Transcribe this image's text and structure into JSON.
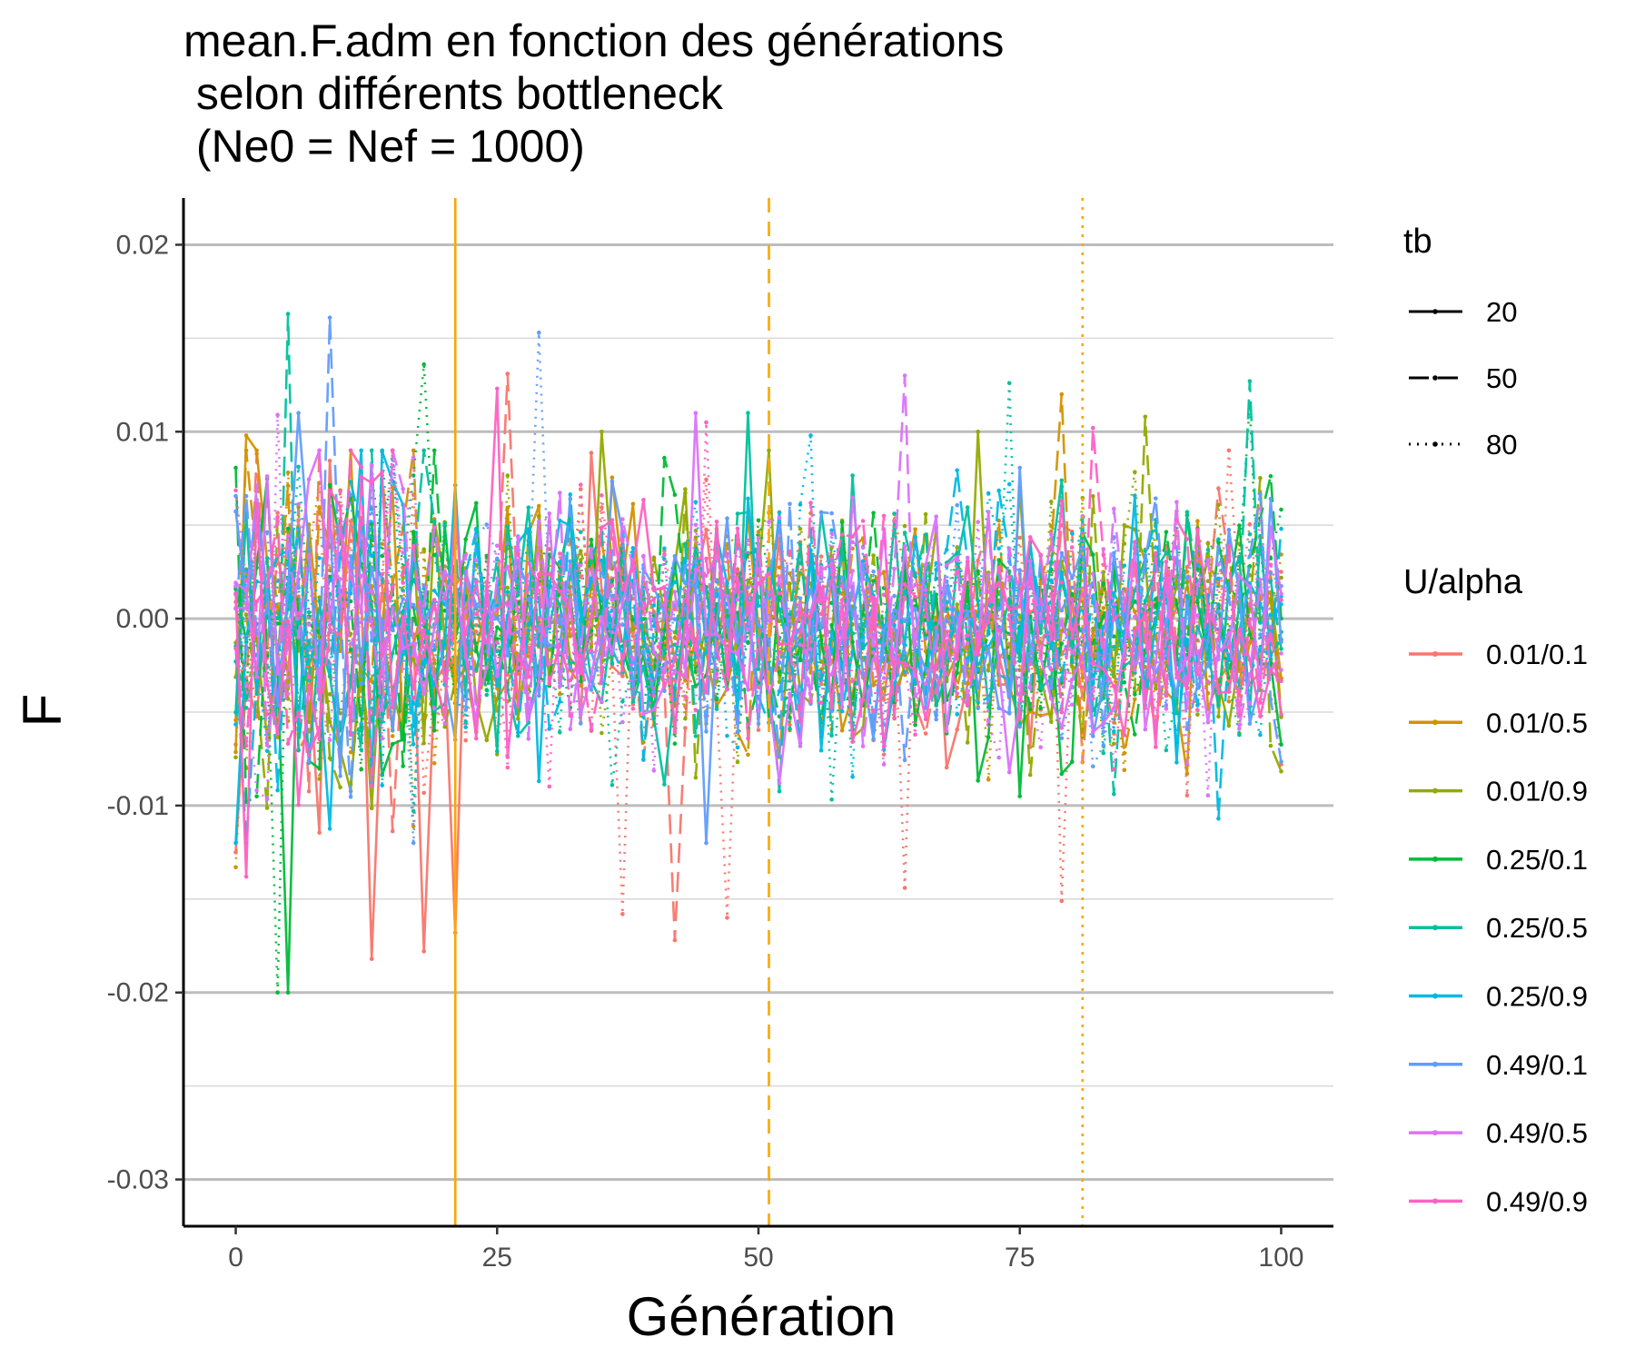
{
  "chart_data": {
    "type": "line",
    "title_lines": [
      "mean.F.adm en fonction des générations",
      " selon différents bottleneck",
      " (Ne0 = Nef = 1000)"
    ],
    "xlabel": "Génération",
    "ylabel": "F",
    "xlim": [
      -5,
      105
    ],
    "ylim": [
      -0.0325,
      0.0225
    ],
    "x_ticks": [
      0,
      25,
      50,
      75,
      100
    ],
    "x_tick_labels": [
      "0",
      "25",
      "50",
      "75",
      "100"
    ],
    "y_ticks": [
      -0.03,
      -0.02,
      -0.01,
      0.0,
      0.01,
      0.02
    ],
    "y_tick_labels": [
      "-0.03",
      "-0.02",
      "-0.01",
      "0.00",
      "0.01",
      "0.02"
    ],
    "y_minor_ticks": [
      -0.025,
      -0.015,
      -0.005,
      0.005,
      0.015
    ],
    "grid": true,
    "legend_position": "right",
    "vertical_lines": [
      {
        "x": 21,
        "linetype": "solid",
        "color": "#FFA500"
      },
      {
        "x": 51,
        "linetype": "dashed",
        "color": "#FFA500"
      },
      {
        "x": 81,
        "linetype": "dotted",
        "color": "#FFA500"
      }
    ],
    "legend_linetype": {
      "title": "tb",
      "items": [
        {
          "label": "20",
          "linetype": "solid"
        },
        {
          "label": "50",
          "linetype": "dashed"
        },
        {
          "label": "80",
          "linetype": "dotted"
        }
      ]
    },
    "legend_color": {
      "title": "U/alpha",
      "items": [
        {
          "label": "0.01/0.1",
          "color": "#F8766D"
        },
        {
          "label": "0.01/0.5",
          "color": "#D39200"
        },
        {
          "label": "0.01/0.9",
          "color": "#93AA00"
        },
        {
          "label": "0.25/0.1",
          "color": "#00BA38"
        },
        {
          "label": "0.25/0.5",
          "color": "#00C19F"
        },
        {
          "label": "0.25/0.9",
          "color": "#00B9E3"
        },
        {
          "label": "0.49/0.1",
          "color": "#619CFF"
        },
        {
          "label": "0.49/0.5",
          "color": "#DB72FB"
        },
        {
          "label": "0.49/0.9",
          "color": "#FF61C3"
        }
      ]
    },
    "series_x_range": [
      0,
      100
    ],
    "series": [
      {
        "group": "0.01/0.1",
        "tb": "20",
        "color": "#F8766D",
        "linetype": "solid",
        "peaks": [
          {
            "x": 21,
            "y": -0.0168
          },
          {
            "x": 13,
            "y": -0.0182
          },
          {
            "x": 18,
            "y": -0.0178
          },
          {
            "x": 0,
            "y": -0.0125
          }
        ]
      },
      {
        "group": "0.01/0.1",
        "tb": "50",
        "color": "#F8766D",
        "linetype": "dashed",
        "peaks": [
          {
            "x": 42,
            "y": -0.0172
          },
          {
            "x": 26,
            "y": 0.0131
          }
        ]
      },
      {
        "group": "0.01/0.1",
        "tb": "80",
        "color": "#F8766D",
        "linetype": "dotted",
        "peaks": [
          {
            "x": 37,
            "y": -0.0158
          },
          {
            "x": 47,
            "y": -0.016
          },
          {
            "x": 64,
            "y": -0.0144
          },
          {
            "x": 79,
            "y": -0.0151
          },
          {
            "x": 100,
            "y": -0.0078
          }
        ]
      },
      {
        "group": "0.01/0.5",
        "tb": "20",
        "color": "#D39200",
        "linetype": "solid",
        "peaks": [
          {
            "x": 1,
            "y": 0.0098
          },
          {
            "x": 91,
            "y": -0.0083
          }
        ]
      },
      {
        "group": "0.01/0.5",
        "tb": "50",
        "color": "#D39200",
        "linetype": "dashed",
        "peaks": [
          {
            "x": 79,
            "y": 0.012
          }
        ]
      },
      {
        "group": "0.01/0.5",
        "tb": "80",
        "color": "#D39200",
        "linetype": "dotted",
        "peaks": [
          {
            "x": 0,
            "y": -0.0133
          }
        ]
      },
      {
        "group": "0.01/0.9",
        "tb": "20",
        "color": "#93AA00",
        "linetype": "solid",
        "peaks": [
          {
            "x": 35,
            "y": 0.01
          },
          {
            "x": 71,
            "y": 0.01
          }
        ]
      },
      {
        "group": "0.01/0.9",
        "tb": "50",
        "color": "#93AA00",
        "linetype": "dashed",
        "peaks": [
          {
            "x": 87,
            "y": 0.0108
          }
        ]
      },
      {
        "group": "0.01/0.9",
        "tb": "80",
        "color": "#93AA00",
        "linetype": "dotted",
        "peaks": [
          {
            "x": 2,
            "y": 0.0071
          }
        ]
      },
      {
        "group": "0.25/0.1",
        "tb": "20",
        "color": "#00BA38",
        "linetype": "solid",
        "peaks": [
          {
            "x": 5,
            "y": -0.02
          },
          {
            "x": 75,
            "y": -0.0095
          }
        ]
      },
      {
        "group": "0.25/0.1",
        "tb": "50",
        "color": "#00BA38",
        "linetype": "dashed",
        "peaks": [
          {
            "x": 41,
            "y": 0.0086
          }
        ]
      },
      {
        "group": "0.25/0.1",
        "tb": "80",
        "color": "#00BA38",
        "linetype": "dotted",
        "peaks": [
          {
            "x": 18,
            "y": 0.0136
          },
          {
            "x": 4,
            "y": -0.02
          },
          {
            "x": 97,
            "y": 0.0115
          }
        ]
      },
      {
        "group": "0.25/0.5",
        "tb": "20",
        "color": "#00C19F",
        "linetype": "solid",
        "peaks": [
          {
            "x": 49,
            "y": 0.011
          }
        ]
      },
      {
        "group": "0.25/0.5",
        "tb": "50",
        "color": "#00C19F",
        "linetype": "dashed",
        "peaks": [
          {
            "x": 5,
            "y": 0.0163
          },
          {
            "x": 97,
            "y": 0.0127
          }
        ]
      },
      {
        "group": "0.25/0.5",
        "tb": "80",
        "color": "#00C19F",
        "linetype": "dotted",
        "peaks": [
          {
            "x": 74,
            "y": 0.0126
          }
        ]
      },
      {
        "group": "0.25/0.9",
        "tb": "20",
        "color": "#00B9E3",
        "linetype": "solid",
        "peaks": [
          {
            "x": 62,
            "y": -0.007
          }
        ]
      },
      {
        "group": "0.25/0.9",
        "tb": "50",
        "color": "#00B9E3",
        "linetype": "dashed",
        "peaks": [
          {
            "x": 94,
            "y": -0.0107
          }
        ]
      },
      {
        "group": "0.25/0.9",
        "tb": "80",
        "color": "#00B9E3",
        "linetype": "dotted",
        "peaks": [
          {
            "x": 55,
            "y": 0.0098
          }
        ]
      },
      {
        "group": "0.49/0.1",
        "tb": "20",
        "color": "#619CFF",
        "linetype": "solid",
        "peaks": [
          {
            "x": 6,
            "y": 0.011
          },
          {
            "x": 45,
            "y": -0.012
          }
        ]
      },
      {
        "group": "0.49/0.1",
        "tb": "50",
        "color": "#619CFF",
        "linetype": "dashed",
        "peaks": [
          {
            "x": 9,
            "y": 0.0161
          }
        ]
      },
      {
        "group": "0.49/0.1",
        "tb": "80",
        "color": "#619CFF",
        "linetype": "dotted",
        "peaks": [
          {
            "x": 29,
            "y": 0.0153
          }
        ]
      },
      {
        "group": "0.49/0.5",
        "tb": "20",
        "color": "#DB72FB",
        "linetype": "solid",
        "peaks": [
          {
            "x": 44,
            "y": 0.011
          }
        ]
      },
      {
        "group": "0.49/0.5",
        "tb": "50",
        "color": "#DB72FB",
        "linetype": "dashed",
        "peaks": [
          {
            "x": 64,
            "y": 0.013
          }
        ]
      },
      {
        "group": "0.49/0.5",
        "tb": "80",
        "color": "#DB72FB",
        "linetype": "dotted",
        "peaks": [
          {
            "x": 4,
            "y": 0.0109
          }
        ]
      },
      {
        "group": "0.49/0.9",
        "tb": "20",
        "color": "#FF61C3",
        "linetype": "solid",
        "peaks": [
          {
            "x": 25,
            "y": 0.0123
          },
          {
            "x": 1,
            "y": -0.0138
          }
        ]
      },
      {
        "group": "0.49/0.9",
        "tb": "50",
        "color": "#FF61C3",
        "linetype": "dashed",
        "peaks": [
          {
            "x": 82,
            "y": 0.0102
          }
        ]
      },
      {
        "group": "0.49/0.9",
        "tb": "80",
        "color": "#FF61C3",
        "linetype": "dotted",
        "peaks": [
          {
            "x": 45,
            "y": 0.0105
          }
        ]
      }
    ]
  }
}
